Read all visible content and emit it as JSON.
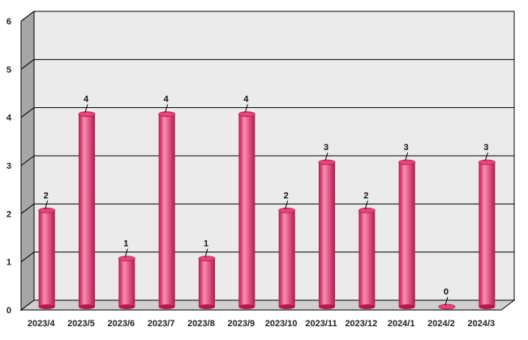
{
  "chart_data": {
    "type": "bar",
    "categories": [
      "2023/4",
      "2023/5",
      "2023/6",
      "2023/7",
      "2023/8",
      "2023/9",
      "2023/10",
      "2023/11",
      "2023/12",
      "2024/1",
      "2024/2",
      "2024/3"
    ],
    "values": [
      2,
      4,
      1,
      4,
      1,
      4,
      2,
      3,
      2,
      3,
      0,
      3
    ],
    "ylim": [
      0,
      6
    ],
    "yticks": [
      "0",
      "1",
      "2",
      "3",
      "4",
      "5",
      "6"
    ],
    "grid": true,
    "legend": "none",
    "style": "3d-cylinder",
    "colors": {
      "bar": "#e8447a",
      "bar_highlight": "#ff8db0",
      "bar_shadow": "#b3174c",
      "plot_background": "#ebebeb",
      "side_wall": "#a6a6a6",
      "floor": "#cfcfcf",
      "gridline": "#000000"
    }
  }
}
